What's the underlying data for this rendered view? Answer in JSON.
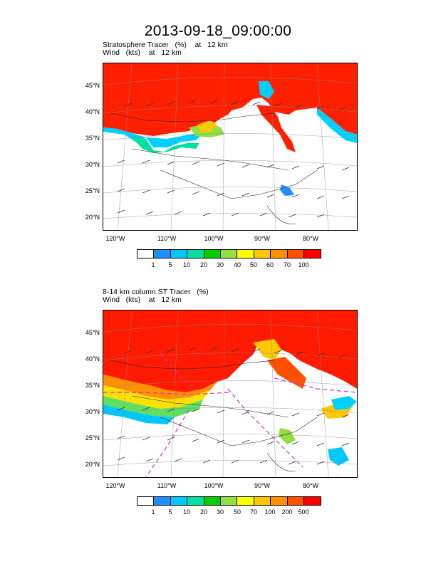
{
  "title": "2013-09-18_09:00:00",
  "panels": [
    {
      "title_line1": "Stratosphere Tracer   (%)    at   12 km",
      "title_line2": "Wind   (kts)    at   12 km",
      "lat_labels": [
        "45°N",
        "40°N",
        "35°N",
        "30°N",
        "25°N",
        "20°N"
      ],
      "lon_labels": [
        "120°W",
        "110°W",
        "100°W",
        "90°W",
        "80°W"
      ],
      "colorbar_labels": [
        "1",
        "5",
        "10",
        "20",
        "30",
        "40",
        "50",
        "60",
        "70",
        "100"
      ]
    },
    {
      "title_line1": "8-14 km column ST Tracer   (%)",
      "title_line2": "Wind   (kts)    at   12 km",
      "lat_labels": [
        "45°N",
        "40°N",
        "35°N",
        "30°N",
        "25°N",
        "20°N"
      ],
      "lon_labels": [
        "120°W",
        "110°W",
        "100°W",
        "90°W",
        "80°W"
      ],
      "colorbar_labels": [
        "1",
        "5",
        "10",
        "20",
        "30",
        "50",
        "70",
        "100",
        "200",
        "500"
      ]
    }
  ],
  "colorbar_colors": [
    "#ffffff",
    "#1e90ff",
    "#00c8ff",
    "#00e0a0",
    "#00d000",
    "#90e040",
    "#ffff00",
    "#ffc800",
    "#ff9000",
    "#ff5000",
    "#ff0000"
  ],
  "contour_line_color": "#cc33cc"
}
